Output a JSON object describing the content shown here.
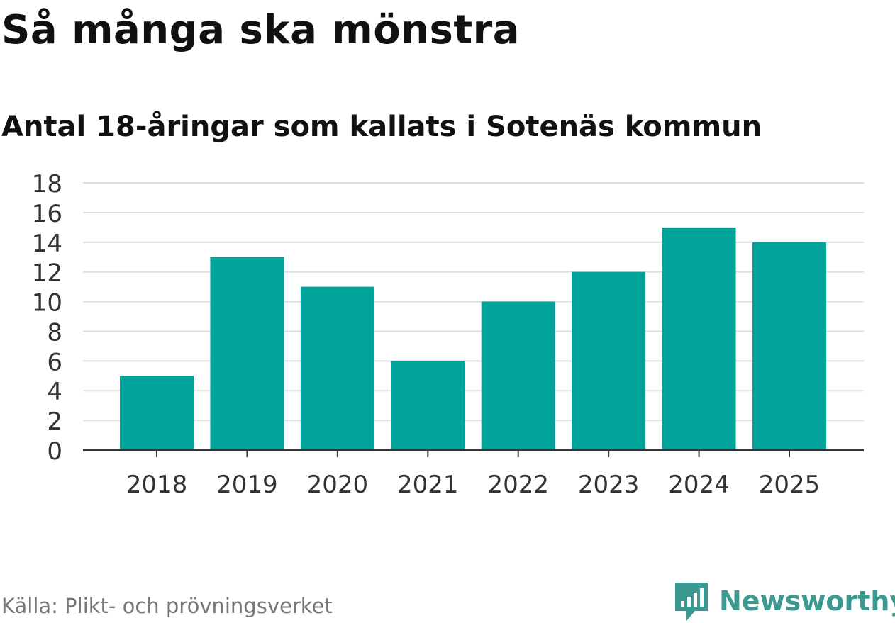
{
  "header": {
    "title": "Så många ska mönstra",
    "subtitle": "Antal 18-åringar som kallats i Sotenäs kommun"
  },
  "footer": {
    "source": "Källa: Plikt- och prövningsverket",
    "brand": "Newsworthy",
    "brand_icon": "newsworthy-logo-icon"
  },
  "colors": {
    "bar": "#00a39a",
    "grid": "#dddddd",
    "axis": "#333333",
    "brand": "#3a9990"
  },
  "chart_data": {
    "type": "bar",
    "title": "Så många ska mönstra",
    "subtitle": "Antal 18-åringar som kallats i Sotenäs kommun",
    "xlabel": "",
    "ylabel": "",
    "categories": [
      "2018",
      "2019",
      "2020",
      "2021",
      "2022",
      "2023",
      "2024",
      "2025"
    ],
    "values": [
      5,
      13,
      11,
      6,
      10,
      12,
      15,
      14
    ],
    "ylim": [
      0,
      18
    ],
    "yticks": [
      0,
      2,
      4,
      6,
      8,
      10,
      12,
      14,
      16,
      18
    ],
    "grid": true,
    "legend": "none"
  }
}
